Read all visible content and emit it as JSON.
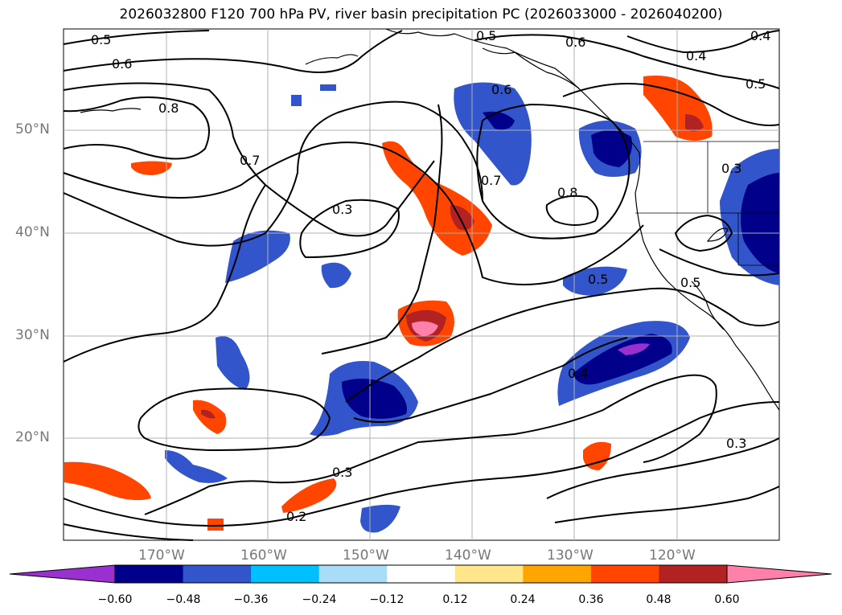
{
  "title": "2026032800 F120 700 hPa PV, river basin precipitation PC (2026033000 - 2026040200)",
  "lat_labels": [
    "50°N",
    "40°N",
    "30°N",
    "20°N"
  ],
  "lon_labels": [
    "170°W",
    "160°W",
    "150°W",
    "140°W",
    "130°W",
    "120°W"
  ],
  "contour_labels": [
    "0.5",
    "0.6",
    "0.8",
    "0.7",
    "0.3",
    "0.5",
    "0.6",
    "0.4",
    "0.6",
    "0.7",
    "0.8",
    "0.4",
    "0.5",
    "0.3",
    "0.5",
    "0.5",
    "0.4",
    "0.3",
    "0.2",
    "0.3"
  ],
  "colorbar": {
    "ticks": [
      "−0.60",
      "−0.48",
      "−0.36",
      "−0.24",
      "−0.12",
      "0.12",
      "0.24",
      "0.36",
      "0.48",
      "0.60"
    ],
    "colors": [
      "#9b30d0",
      "#00008b",
      "#3355cc",
      "#00bfff",
      "#a9ddf7",
      "#ffffff",
      "#ffe68c",
      "#ffa500",
      "#ff4500",
      "#b22222",
      "#ff80a8",
      "#ff80a8"
    ]
  },
  "colors": {
    "land_line": "#000000",
    "grid": "#b0b0b0",
    "contour": "#000000"
  }
}
